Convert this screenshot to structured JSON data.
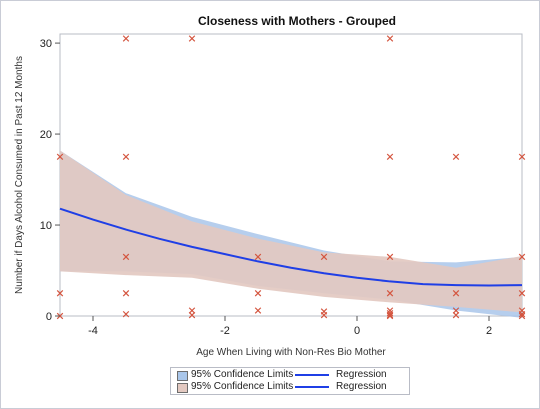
{
  "chart_data": {
    "type": "scatter",
    "title": "Closeness with Mothers - Grouped",
    "xlabel": "Age When Living with Non-Res Bio Mother",
    "ylabel": "Number if Days Alcohol Consumed in Past 12 Months",
    "xlim": [
      -4.5,
      2.5
    ],
    "ylim": [
      0,
      31
    ],
    "xticks": [
      -4,
      -2,
      0,
      2
    ],
    "yticks": [
      0,
      10,
      20,
      30
    ],
    "grid": false,
    "legend_position": "bottom",
    "colors": {
      "band_a": "#a9c6ea",
      "band_b": "#e3c9c1",
      "regression": "#1f3fe6",
      "marker": "#d4553f"
    },
    "series": [
      {
        "kind": "points",
        "x": [
          -4.5,
          -4.5,
          -4.5,
          -3.5,
          -3.5,
          -3.5,
          -3.5,
          -3.5,
          -2.5,
          -2.5,
          -2.5,
          -1.5,
          -1.5,
          -1.5,
          -0.5,
          -0.5,
          -0.5,
          0.5,
          0.5,
          0.5,
          0.5,
          0.5,
          0.5,
          0.5,
          0.5,
          1.5,
          1.5,
          1.5,
          1.5,
          2.5,
          2.5,
          2.5,
          2.5,
          2.5,
          2.5
        ],
        "y": [
          17.5,
          2.5,
          0,
          30.5,
          17.5,
          6.5,
          2.5,
          0.2,
          30.5,
          0.6,
          0.1,
          6.5,
          2.5,
          0.6,
          6.5,
          0.5,
          0.1,
          30.5,
          17.5,
          6.5,
          2.5,
          0.6,
          0.3,
          0.1,
          0,
          17.5,
          2.5,
          0.6,
          0.1,
          17.5,
          6.5,
          2.5,
          0.6,
          0.2,
          0
        ]
      },
      {
        "kind": "regression",
        "x": [
          -4.5,
          -4,
          -3.5,
          -3,
          -2.5,
          -2,
          -1.5,
          -1,
          -0.5,
          0,
          0.5,
          1,
          1.5,
          2,
          2.5
        ],
        "y": [
          11.8,
          10.6,
          9.5,
          8.5,
          7.6,
          6.8,
          6.0,
          5.3,
          4.7,
          4.2,
          3.8,
          3.5,
          3.4,
          3.35,
          3.4
        ]
      },
      {
        "kind": "confidence_band_blue",
        "x": [
          -4.5,
          -3.5,
          -2.5,
          -1.5,
          -0.5,
          0.5,
          1.5,
          2.5
        ],
        "lower": [
          4.9,
          4.9,
          4.6,
          3.3,
          2.5,
          1.8,
          0.6,
          -0.2
        ],
        "upper": [
          18.2,
          13.5,
          10.9,
          9.0,
          7.2,
          6.0,
          5.9,
          6.5
        ]
      },
      {
        "kind": "confidence_band_tan",
        "x": [
          -4.5,
          -3.5,
          -2.5,
          -1.5,
          -0.5,
          0.5,
          1.5,
          2.5
        ],
        "lower": [
          4.9,
          4.5,
          4.2,
          3.0,
          2.1,
          1.5,
          1.0,
          0.4
        ],
        "upper": [
          18.2,
          13.3,
          10.4,
          8.5,
          7.0,
          6.5,
          5.3,
          6.6
        ]
      }
    ]
  },
  "legend": {
    "row1": {
      "band_label": "95% Confidence Limits",
      "line_label": "Regression"
    },
    "row2": {
      "band_label": "95% Confidence Limits",
      "line_label": "Regression"
    }
  }
}
